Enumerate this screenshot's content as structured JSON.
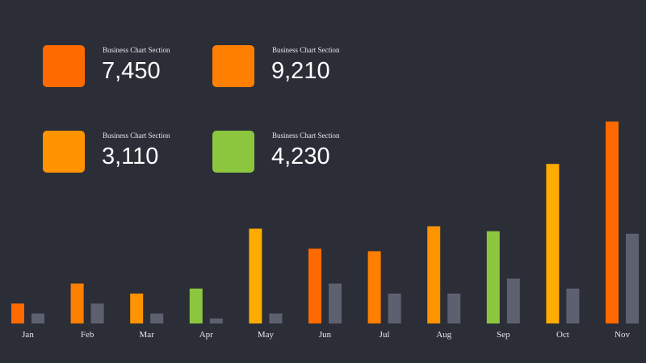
{
  "kpis": [
    {
      "label": "Business Chart Section",
      "value": "7,450",
      "color": "#ff6a00"
    },
    {
      "label": "Business Chart Section",
      "value": "9,210",
      "color": "#ff7f00"
    },
    {
      "label": "Business Chart Section",
      "value": "3,110",
      "color": "#ff9300"
    },
    {
      "label": "Business Chart Section",
      "value": "4,230",
      "color": "#8cc63f"
    }
  ],
  "chart_data": {
    "type": "bar",
    "categories": [
      "Jan",
      "Feb",
      "Mar",
      "Apr",
      "May",
      "Jun",
      "Jul",
      "Aug",
      "Sep",
      "Oct",
      "Nov"
    ],
    "series": [
      {
        "values": [
          4,
          8,
          6,
          7,
          19,
          15,
          14.5,
          19.5,
          18.5,
          32,
          40.5
        ],
        "colors": [
          "#ff6a00",
          "#ff7f00",
          "#ff9300",
          "#8cc63f",
          "#ffab00",
          "#ff6a00",
          "#ff7f00",
          "#ff9300",
          "#8cc63f",
          "#ffab00",
          "#ff6a00"
        ]
      },
      {
        "values": [
          2,
          4,
          2,
          1,
          2,
          8,
          6,
          6,
          9,
          7,
          18
        ],
        "color": "#5d606f"
      }
    ],
    "ylim": [
      0,
      44
    ],
    "grid": false,
    "legend": "none"
  }
}
